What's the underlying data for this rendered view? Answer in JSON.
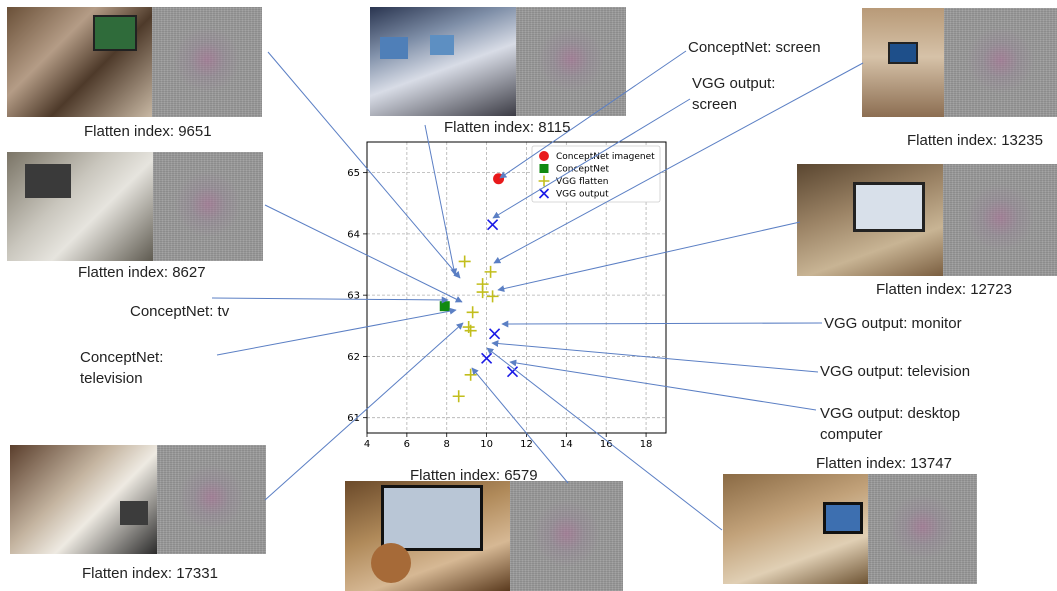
{
  "chart_data": {
    "type": "scatter",
    "title": "",
    "xlabel": "",
    "ylabel": "",
    "xlim": [
      4,
      19
    ],
    "ylim": [
      60.75,
      65.5
    ],
    "xticks": [
      "4",
      "6",
      "8",
      "10",
      "12",
      "14",
      "16",
      "18"
    ],
    "yticks": [
      "61",
      "62",
      "63",
      "64",
      "65"
    ],
    "grid": true,
    "legend_position": "top-right",
    "series": [
      {
        "name": "ConceptNet imagenet",
        "marker": "circle",
        "color": "#e8191b",
        "x": [
          10.6
        ],
        "y": [
          64.9
        ]
      },
      {
        "name": "ConceptNet",
        "marker": "square",
        "color": "#118a11",
        "x": [
          7.9
        ],
        "y": [
          62.82
        ]
      },
      {
        "name": "VGG flatten",
        "marker": "plus",
        "color": "#c2be1c",
        "x": [
          8.9,
          10.2,
          9.8,
          9.8,
          10.3,
          9.3,
          9.1,
          9.2,
          9.2,
          8.6
        ],
        "y": [
          63.55,
          63.38,
          63.18,
          63.05,
          62.98,
          62.72,
          62.48,
          62.42,
          61.7,
          61.35
        ]
      },
      {
        "name": "VGG output",
        "marker": "x",
        "color": "#1a1ae6",
        "x": [
          10.3,
          10.4,
          10.0,
          11.3
        ],
        "y": [
          64.15,
          62.37,
          61.97,
          61.75
        ]
      }
    ]
  },
  "labels": {
    "flatten_9651": "Flatten index: 9651",
    "flatten_8115": "Flatten index: 8115",
    "flatten_13235": "Flatten index: 13235",
    "flatten_8627": "Flatten index: 8627",
    "flatten_12723": "Flatten index: 12723",
    "flatten_6579": "Flatten index: 6579",
    "flatten_13747": "Flatten index: 13747",
    "flatten_17331": "Flatten index: 17331",
    "conceptnet_screen": "ConceptNet: screen",
    "vgg_output_screen": "VGG output: screen",
    "conceptnet_tv": "ConceptNet: tv",
    "conceptnet_television": "ConceptNet: television",
    "vgg_output_monitor": "VGG output: monitor",
    "vgg_output_television": "VGG output: television",
    "vgg_output_desktop": "VGG output: desktop computer"
  },
  "colors": {
    "arrow": "#5b7fc4",
    "grid": "#b0b0b0"
  }
}
